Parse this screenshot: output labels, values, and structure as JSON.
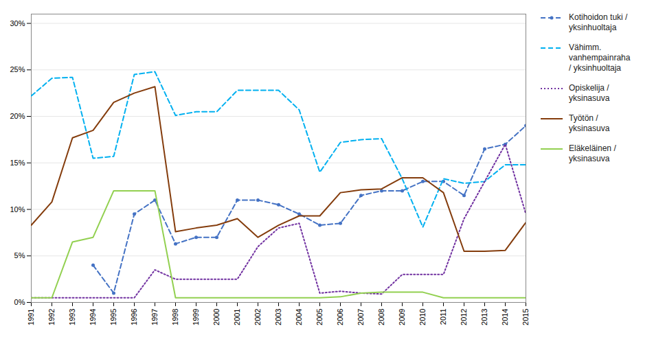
{
  "chart_data": {
    "type": "line",
    "x": [
      1991,
      1992,
      1993,
      1994,
      1995,
      1996,
      1997,
      1998,
      1999,
      2000,
      2001,
      2002,
      2003,
      2004,
      2005,
      2006,
      2007,
      2008,
      2009,
      2010,
      2011,
      2012,
      2013,
      2014,
      2015
    ],
    "xlim": [
      1991,
      2015
    ],
    "xticks": [
      1991,
      1992,
      1993,
      1994,
      1995,
      1996,
      1997,
      1998,
      1999,
      2000,
      2001,
      2002,
      2003,
      2004,
      2005,
      2006,
      2007,
      2008,
      2009,
      2010,
      2011,
      2012,
      2013,
      2014,
      2015
    ],
    "ylim": [
      0,
      0.31
    ],
    "yticks": [
      {
        "value": 0,
        "label": "0%"
      },
      {
        "value": 0.05,
        "label": "5%"
      },
      {
        "value": 0.1,
        "label": "10%"
      },
      {
        "value": 0.15,
        "label": "15%"
      },
      {
        "value": 0.2,
        "label": "20%"
      },
      {
        "value": 0.25,
        "label": "25%"
      },
      {
        "value": 0.3,
        "label": "30%"
      }
    ],
    "grid": true,
    "legend": "right",
    "series": [
      {
        "name": "Kotihoidon tuki /\nyksinhuoltaja",
        "color": "#4472C4",
        "line_style": "dashed",
        "marker": "circle",
        "values": [
          null,
          null,
          null,
          0.04,
          0.01,
          0.095,
          0.11,
          0.063,
          0.07,
          0.07,
          0.11,
          0.11,
          0.105,
          0.095,
          0.083,
          0.085,
          0.115,
          0.12,
          0.12,
          0.13,
          0.13,
          0.115,
          0.165,
          0.17,
          0.19
        ]
      },
      {
        "name": "Vähimm.\nvanhempainraha\n/ yksinhuoltaja",
        "color": "#00B0F0",
        "line_style": "dashed",
        "values": [
          0.222,
          0.241,
          0.242,
          0.155,
          0.157,
          0.245,
          0.248,
          0.201,
          0.205,
          0.205,
          0.228,
          0.228,
          0.228,
          0.207,
          0.14,
          0.172,
          0.175,
          0.176,
          0.133,
          0.081,
          0.133,
          0.128,
          0.13,
          0.148,
          0.148
        ]
      },
      {
        "name": "Opiskelija /\nyksinasuva",
        "color": "#7030A0",
        "line_style": "dotted",
        "values": [
          0.005,
          0.005,
          0.005,
          0.005,
          0.005,
          0.005,
          0.035,
          0.025,
          0.025,
          0.025,
          0.025,
          0.06,
          0.08,
          0.085,
          0.01,
          0.012,
          0.01,
          0.009,
          0.03,
          0.03,
          0.03,
          0.09,
          0.13,
          0.17,
          0.095
        ]
      },
      {
        "name": "Työtön /\nyksinasuva",
        "color": "#843C0C",
        "line_style": "solid",
        "values": [
          0.083,
          0.108,
          0.177,
          0.185,
          0.215,
          0.225,
          0.232,
          0.076,
          0.08,
          0.083,
          0.09,
          0.07,
          0.083,
          0.093,
          0.093,
          0.118,
          0.121,
          0.122,
          0.134,
          0.134,
          0.118,
          0.055,
          0.055,
          0.056,
          0.086
        ]
      },
      {
        "name": "Eläkeläinen /\nyksinasuva",
        "color": "#92D050",
        "line_style": "solid",
        "values": [
          0.005,
          0.005,
          0.065,
          0.07,
          0.12,
          0.12,
          0.12,
          0.005,
          0.005,
          0.005,
          0.005,
          0.005,
          0.005,
          0.005,
          0.005,
          0.006,
          0.01,
          0.011,
          0.011,
          0.011,
          0.005,
          0.005,
          0.005,
          0.005,
          0.005
        ]
      }
    ]
  }
}
